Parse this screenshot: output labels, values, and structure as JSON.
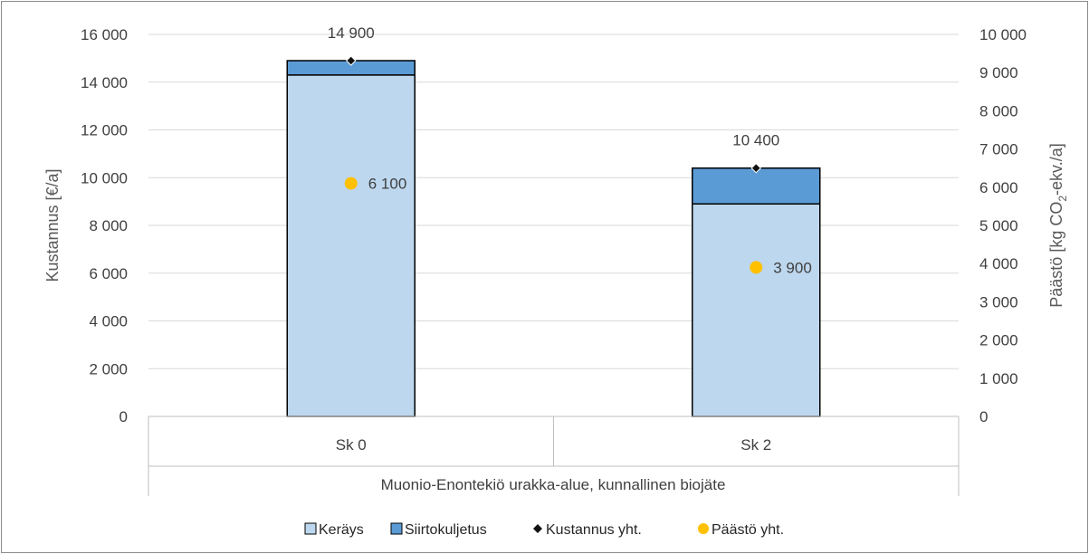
{
  "chart_data": {
    "type": "bar",
    "stacked": true,
    "categories": [
      "Sk 0",
      "Sk 2"
    ],
    "group_label": "Muonio-Enontekiö urakka-alue, kunnallinen biojäte",
    "series": [
      {
        "name": "Keräys",
        "axis": "left",
        "kind": "bar",
        "color": "#bdd7ee",
        "values": [
          14300,
          8900
        ]
      },
      {
        "name": "Siirtokuljetus",
        "axis": "left",
        "kind": "bar",
        "color": "#5b9bd5",
        "values": [
          600,
          1500
        ]
      },
      {
        "name": "Kustannus yht.",
        "axis": "left",
        "kind": "marker-diamond",
        "color": "#000000",
        "values": [
          14900,
          10400
        ],
        "labels": [
          "14 900",
          "10 400"
        ]
      },
      {
        "name": "Päästö yht.",
        "axis": "right",
        "kind": "marker-circle",
        "color": "#ffc000",
        "values": [
          6100,
          3900
        ],
        "labels": [
          "6 100",
          "3 900"
        ]
      }
    ],
    "left_axis": {
      "title": "Kustannus [€/a]",
      "ylim": [
        0,
        16000
      ],
      "ticks": [
        0,
        2000,
        4000,
        6000,
        8000,
        10000,
        12000,
        14000,
        16000
      ],
      "tick_labels": [
        "0",
        "2 000",
        "4 000",
        "6 000",
        "8 000",
        "10 000",
        "12 000",
        "14 000",
        "16 000"
      ]
    },
    "right_axis": {
      "title_main": "Päästö [kg CO",
      "title_sub": "2",
      "title_end": "-ekv./a]",
      "ylim": [
        0,
        10000
      ],
      "ticks": [
        0,
        1000,
        2000,
        3000,
        4000,
        5000,
        6000,
        7000,
        8000,
        9000,
        10000
      ],
      "tick_labels": [
        "0",
        "1 000",
        "2 000",
        "3 000",
        "4 000",
        "5 000",
        "6 000",
        "7 000",
        "8 000",
        "9 000",
        "10 000"
      ]
    },
    "grid": true,
    "legend_position": "bottom"
  }
}
